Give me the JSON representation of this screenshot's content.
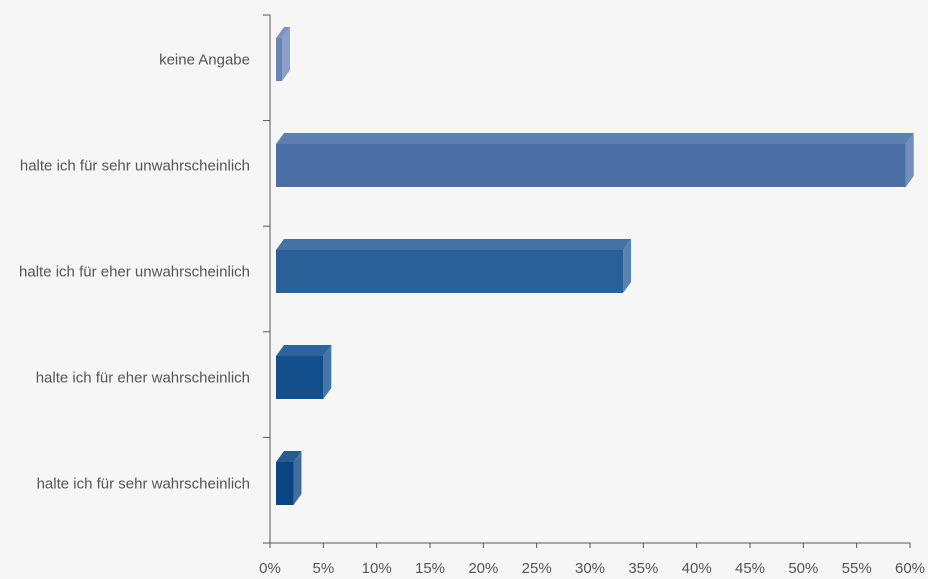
{
  "chart_data": {
    "type": "bar",
    "orientation": "horizontal",
    "style": "3d",
    "categories": [
      "keine Angabe",
      "halte ich für sehr unwahrscheinlich",
      "halte ich für eher unwahrscheinlich",
      "halte ich für eher wahrscheinlich",
      "halte ich für sehr wahrscheinlich"
    ],
    "values": [
      0.8,
      59.6,
      33.1,
      5.0,
      2.2
    ],
    "value_unit": "%",
    "xlim": [
      0,
      60
    ],
    "x_ticks": [
      0,
      5,
      10,
      15,
      20,
      25,
      30,
      35,
      40,
      45,
      50,
      55,
      60
    ],
    "x_tick_labels": [
      "0%",
      "5%",
      "10%",
      "15%",
      "20%",
      "25%",
      "30%",
      "35%",
      "40%",
      "45%",
      "50%",
      "55%",
      "60%"
    ],
    "grid": false,
    "legend": "none",
    "bar_colors": [
      "#6a84b8",
      "#4a6ea5",
      "#2b5f98",
      "#134f8c",
      "#0a4482"
    ]
  }
}
